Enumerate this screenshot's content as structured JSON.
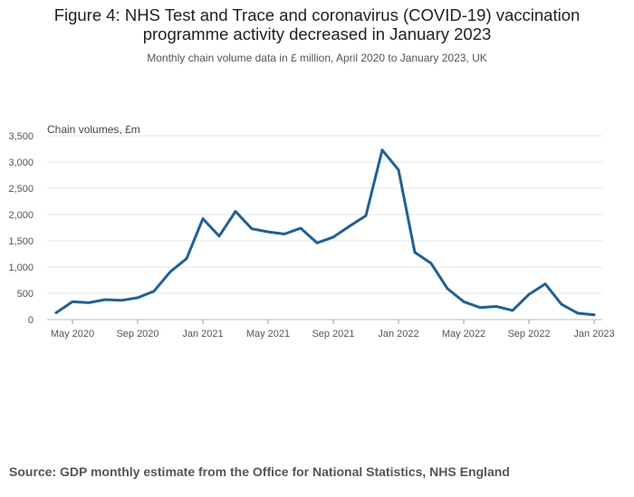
{
  "title_line1": "Figure 4: NHS Test and Trace and coronavirus (COVID-19) vaccination",
  "title_line2": "programme activity decreased in January 2023",
  "subtitle": "Monthly chain volume data in £ million, April 2020 to January 2023, UK",
  "source": "Source: GDP monthly estimate from the Office for National Statistics, NHS England",
  "chart_data": {
    "type": "line",
    "title": "Figure 4: NHS Test and Trace and coronavirus (COVID-19) vaccination programme activity decreased in January 2023",
    "subtitle": "Monthly chain volume data in £ million, April 2020 to January 2023, UK",
    "ylabel": "Chain volumes, £m",
    "xlabel": "",
    "ylim": [
      0,
      3500
    ],
    "yticks": [
      0,
      500,
      1000,
      1500,
      2000,
      2500,
      3000,
      3500
    ],
    "ytick_labels": [
      "0",
      "500",
      "1,000",
      "1,500",
      "2,000",
      "2,500",
      "3,000",
      "3,500"
    ],
    "xtick_labels": [
      {
        "label": "May 2020",
        "month": "2020-05"
      },
      {
        "label": "Sep 2020",
        "month": "2020-09"
      },
      {
        "label": "Jan 2021",
        "month": "2021-01"
      },
      {
        "label": "May 2021",
        "month": "2021-05"
      },
      {
        "label": "Sep 2021",
        "month": "2021-09"
      },
      {
        "label": "Jan 2022",
        "month": "2022-01"
      },
      {
        "label": "May 2022",
        "month": "2022-05"
      },
      {
        "label": "Sep 2022",
        "month": "2022-09"
      },
      {
        "label": "Jan 2023",
        "month": "2023-01"
      }
    ],
    "grid": true,
    "line_color": "#206095",
    "series": [
      {
        "x": [
          "2020-04",
          "2020-05",
          "2020-06",
          "2020-07",
          "2020-08",
          "2020-09",
          "2020-10",
          "2020-11",
          "2020-12",
          "2021-01",
          "2021-02",
          "2021-03",
          "2021-04",
          "2021-05",
          "2021-06",
          "2021-07",
          "2021-08",
          "2021-09",
          "2021-10",
          "2021-11",
          "2021-12",
          "2022-01",
          "2022-02",
          "2022-03",
          "2022-04",
          "2022-05",
          "2022-06",
          "2022-07",
          "2022-08",
          "2022-09",
          "2022-10",
          "2022-11",
          "2022-12",
          "2023-01"
        ],
        "values": [
          130,
          340,
          320,
          380,
          365,
          415,
          540,
          910,
          1160,
          1920,
          1590,
          2060,
          1730,
          1670,
          1630,
          1740,
          1460,
          1570,
          1780,
          1980,
          3230,
          2850,
          1280,
          1070,
          590,
          340,
          230,
          250,
          175,
          480,
          680,
          290,
          120,
          90
        ]
      }
    ]
  }
}
